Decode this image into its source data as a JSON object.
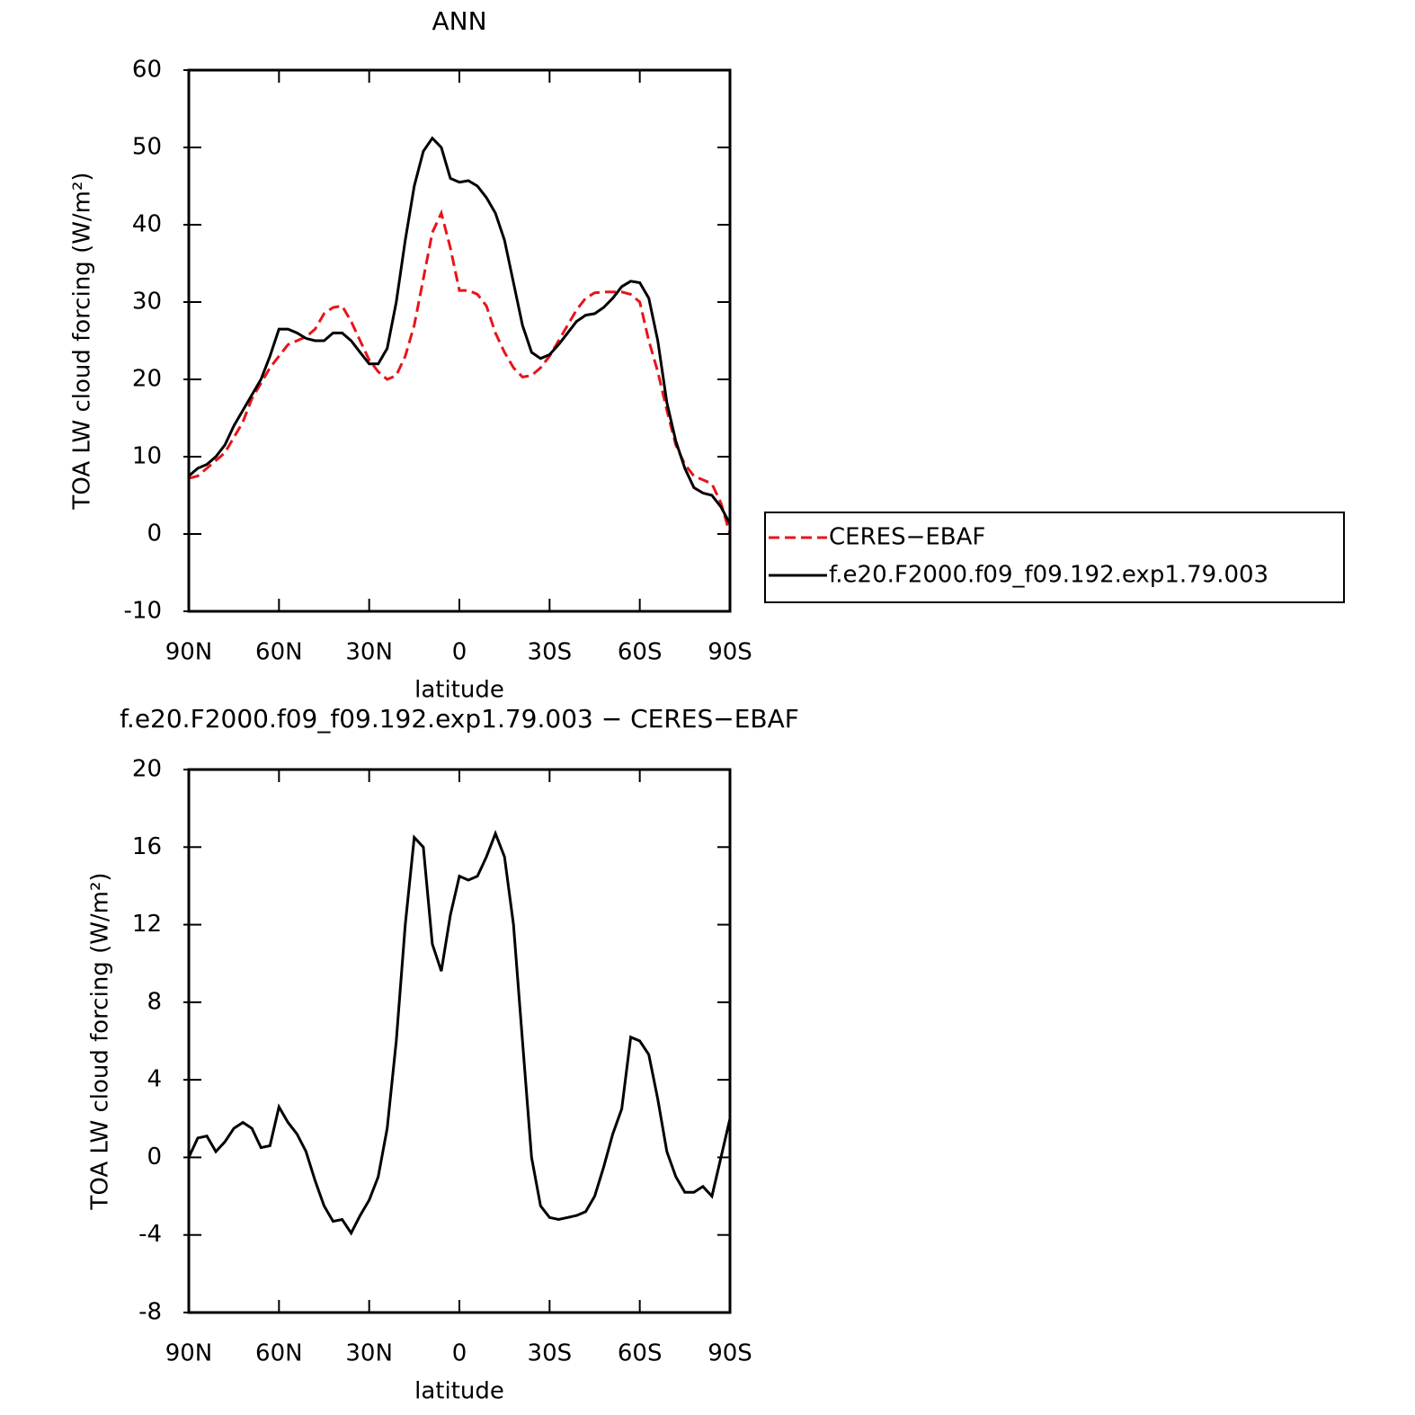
{
  "chart_data": [
    {
      "type": "line",
      "title": "ANN",
      "xlabel": "latitude",
      "ylabel": "TOA LW cloud forcing (W/m²)",
      "x": [
        90,
        87,
        84,
        81,
        78,
        75,
        72,
        69,
        66,
        63,
        60,
        57,
        54,
        51,
        48,
        45,
        42,
        39,
        36,
        33,
        30,
        27,
        24,
        21,
        18,
        15,
        12,
        9,
        6,
        3,
        0,
        -3,
        -6,
        -9,
        -12,
        -15,
        -18,
        -21,
        -24,
        -27,
        -30,
        -33,
        -36,
        -39,
        -42,
        -45,
        -48,
        -51,
        -54,
        -57,
        -60,
        -63,
        -66,
        -69,
        -72,
        -75,
        -78,
        -81,
        -84,
        -87,
        -90
      ],
      "series": [
        {
          "name": "CERES−EBAF",
          "color": "#e8141a",
          "linestyle": "dashed",
          "values": [
            7.2,
            7.5,
            8.5,
            9.5,
            10.5,
            12.5,
            14.5,
            17.5,
            19.5,
            21.5,
            23,
            24.5,
            25,
            25.5,
            26.5,
            28.5,
            29.3,
            29.5,
            27.5,
            25,
            22.5,
            21,
            20,
            20.5,
            23,
            27,
            33,
            39,
            41.5,
            37,
            31.5,
            31.5,
            31,
            29.5,
            26,
            23.5,
            21.5,
            20.3,
            20.5,
            21.5,
            23,
            25,
            27,
            29,
            30.5,
            31.2,
            31.3,
            31.3,
            31.3,
            31,
            30,
            25,
            21,
            16,
            11.5,
            9,
            7.5,
            7,
            6.5,
            4,
            0
          ]
        },
        {
          "name": "f.e20.F2000.f09_f09.192.exp1.79.003",
          "color": "#000000",
          "linestyle": "solid",
          "values": [
            7.5,
            8.5,
            9,
            10,
            11.5,
            14,
            16,
            18,
            20,
            23,
            26.5,
            26.5,
            26,
            25.3,
            25,
            25,
            26,
            26,
            25,
            23.5,
            22,
            22,
            24,
            30,
            38,
            45,
            49.5,
            51.2,
            50,
            46,
            45.5,
            45.7,
            45,
            43.5,
            41.5,
            38,
            32.5,
            27,
            23.5,
            22.7,
            23.2,
            24.5,
            26,
            27.5,
            28.3,
            28.5,
            29.3,
            30.5,
            32,
            32.7,
            32.5,
            30.5,
            25,
            17,
            12,
            8.5,
            6,
            5.3,
            5,
            3.5,
            1.3
          ]
        }
      ],
      "xlim": [
        90,
        -90
      ],
      "xticks": [
        {
          "value": 90,
          "label": "90N"
        },
        {
          "value": 60,
          "label": "60N"
        },
        {
          "value": 30,
          "label": "30N"
        },
        0,
        {
          "value": -30,
          "label": "30S"
        },
        {
          "value": -60,
          "label": "60S"
        },
        {
          "value": -90,
          "label": "90S"
        }
      ],
      "ylim": [
        -10,
        60
      ],
      "yticks": [
        -10,
        0,
        10,
        20,
        30,
        40,
        50,
        60
      ],
      "legend": "right"
    },
    {
      "type": "line",
      "title": "f.e20.F2000.f09_f09.192.exp1.79.003 − CERES−EBAF",
      "xlabel": "latitude",
      "ylabel": "TOA LW cloud forcing (W/m²)",
      "x": [
        90,
        87,
        84,
        81,
        78,
        75,
        72,
        69,
        66,
        63,
        60,
        57,
        54,
        51,
        48,
        45,
        42,
        39,
        36,
        33,
        30,
        27,
        24,
        21,
        18,
        15,
        12,
        9,
        6,
        3,
        0,
        -3,
        -6,
        -9,
        -12,
        -15,
        -18,
        -21,
        -24,
        -27,
        -30,
        -33,
        -36,
        -39,
        -42,
        -45,
        -48,
        -51,
        -54,
        -57,
        -60,
        -63,
        -66,
        -69,
        -72,
        -75,
        -78,
        -81,
        -84,
        -87,
        -90
      ],
      "color": "#000000",
      "values": [
        0,
        1,
        1.1,
        0.3,
        0.8,
        1.5,
        1.8,
        1.5,
        0.5,
        0.6,
        2.6,
        1.8,
        1.2,
        0.3,
        -1.2,
        -2.5,
        -3.3,
        -3.2,
        -3.9,
        -3,
        -2.2,
        -1,
        1.5,
        6,
        12,
        16.5,
        16,
        11,
        9.6,
        12.5,
        14.5,
        14.3,
        14.5,
        15.5,
        16.7,
        15.5,
        12,
        6,
        0,
        -2.5,
        -3.1,
        -3.2,
        -3.1,
        -3,
        -2.8,
        -2,
        -0.5,
        1.2,
        2.5,
        6.2,
        6,
        5.3,
        3,
        0.3,
        -1,
        -1.8,
        -1.8,
        -1.5,
        -2,
        0,
        2
      ],
      "xlim": [
        90,
        -90
      ],
      "xticks": [
        {
          "value": 90,
          "label": "90N"
        },
        {
          "value": 60,
          "label": "60N"
        },
        {
          "value": 30,
          "label": "30N"
        },
        0,
        {
          "value": -30,
          "label": "30S"
        },
        {
          "value": -60,
          "label": "60S"
        },
        {
          "value": -90,
          "label": "90S"
        }
      ],
      "ylim": [
        -8,
        20
      ],
      "yticks": [
        -8,
        -4,
        0,
        4,
        8,
        12,
        16,
        20
      ]
    }
  ]
}
